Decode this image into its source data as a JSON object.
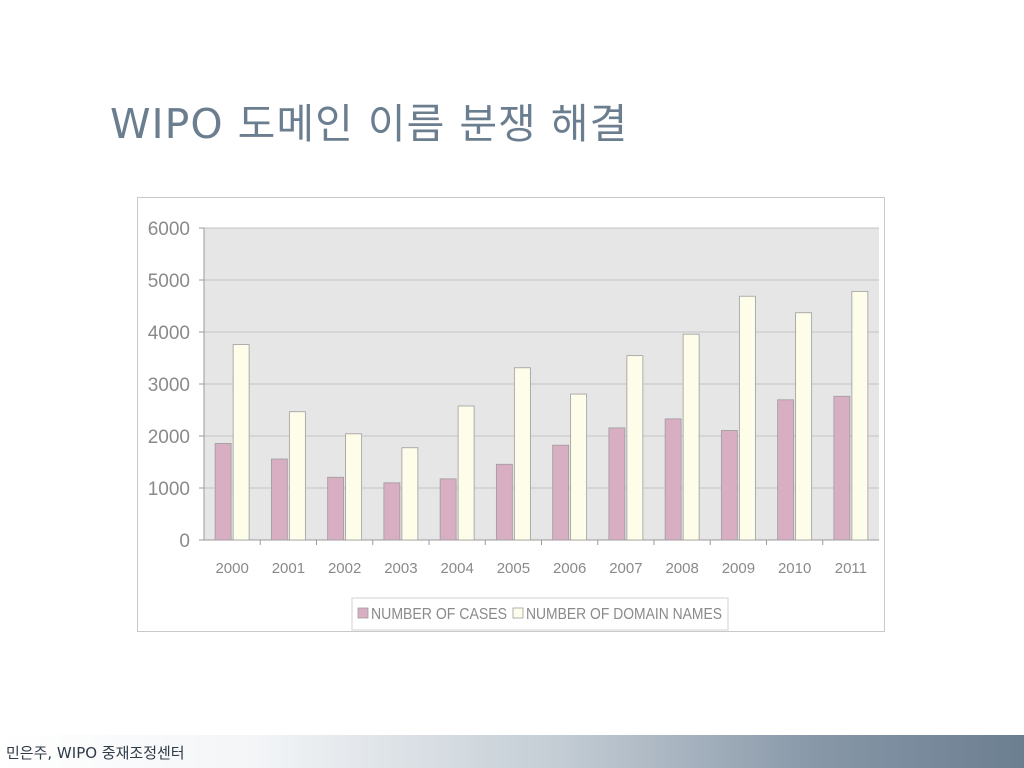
{
  "slide": {
    "title": "WIPO 도메인 이름 분쟁 해결",
    "footer": "민은주, WIPO 중재조정센터"
  },
  "colors": {
    "title": "#6b7e90",
    "plot_background": "#e6e6e6",
    "cases_bar": "#d8aec2",
    "domain_bar": "#fdfde9"
  },
  "chart_data": {
    "type": "bar",
    "title": "",
    "xlabel": "",
    "ylabel": "",
    "ylim": [
      0,
      6000
    ],
    "yticks": [
      "0",
      "1000",
      "2000",
      "3000",
      "4000",
      "5000",
      "6000"
    ],
    "grid": true,
    "legend_position": "bottom",
    "categories": [
      "2000",
      "2001",
      "2002",
      "2003",
      "2004",
      "2005",
      "2006",
      "2007",
      "2008",
      "2009",
      "2010",
      "2011"
    ],
    "series": [
      {
        "name": "NUMBER OF CASES",
        "color": "#d8aec2",
        "values": [
          1857,
          1557,
          1207,
          1100,
          1176,
          1456,
          1824,
          2156,
          2329,
          2107,
          2696,
          2764
        ]
      },
      {
        "name": "NUMBER OF DOMAIN NAMES",
        "color": "#fdfde9",
        "values": [
          3760,
          2467,
          2042,
          1774,
          2577,
          3312,
          2806,
          3545,
          3958,
          4688,
          4370,
          4781
        ]
      }
    ]
  }
}
